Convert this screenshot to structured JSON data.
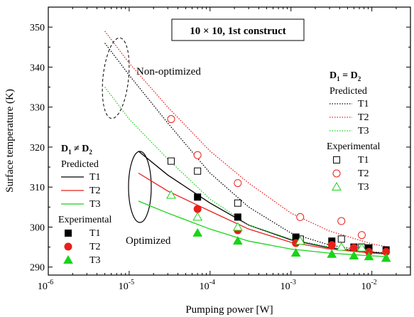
{
  "chart_data": {
    "type": "scatter",
    "title": "10 × 10, 1st construct",
    "xlabel": "Pumping power [W]",
    "ylabel": "Surface temperature (K)",
    "xscale": "log",
    "xlim": [
      1e-06,
      0.03
    ],
    "ylim": [
      288,
      355
    ],
    "x_tick_labels": [
      {
        "base": "10",
        "exp": "-6",
        "value": 1e-06
      },
      {
        "base": "10",
        "exp": "-5",
        "value": 1e-05
      },
      {
        "base": "10",
        "exp": "-4",
        "value": 0.0001
      },
      {
        "base": "10",
        "exp": "-3",
        "value": 0.001
      },
      {
        "base": "10",
        "exp": "-2",
        "value": 0.01
      }
    ],
    "y_ticks": [
      290,
      300,
      310,
      320,
      330,
      340,
      350
    ],
    "annotations": {
      "non_optimized": "Non-optimized",
      "optimized": "Optimized"
    },
    "legend_left": {
      "header": "D",
      "header_sub": "1",
      "header_rel": " ≠ D",
      "header_sub2": "2",
      "predicted_label": "Predicted",
      "experimental_label": "Experimental",
      "items": [
        "T1",
        "T2",
        "T3"
      ]
    },
    "legend_right": {
      "header": "D",
      "header_sub": "1",
      "header_rel": " = D",
      "header_sub2": "2",
      "predicted_label": "Predicted",
      "experimental_label": "Experimental",
      "items": [
        "T1",
        "T2",
        "T3"
      ]
    },
    "colors": {
      "T1": "#000000",
      "T2": "#e8201a",
      "T3": "#18d418"
    },
    "optimized": {
      "predicted": {
        "T1": [
          [
            1.3e-05,
            319
          ],
          [
            3e-05,
            313
          ],
          [
            0.0001,
            306
          ],
          [
            0.0003,
            300.5
          ],
          [
            0.001,
            296.8
          ],
          [
            0.003,
            294.8
          ],
          [
            0.01,
            293.7
          ],
          [
            0.016,
            293.3
          ]
        ],
        "T2": [
          [
            1.3e-05,
            313.5
          ],
          [
            3e-05,
            309
          ],
          [
            0.0001,
            304
          ],
          [
            0.0003,
            299.5
          ],
          [
            0.001,
            296.2
          ],
          [
            0.003,
            294.5
          ],
          [
            0.01,
            293.5
          ],
          [
            0.016,
            293.2
          ]
        ],
        "T3": [
          [
            1.3e-05,
            306.5
          ],
          [
            3e-05,
            303.5
          ],
          [
            0.0001,
            299.5
          ],
          [
            0.0003,
            296.5
          ],
          [
            0.001,
            294.5
          ],
          [
            0.003,
            293.5
          ],
          [
            0.01,
            292.8
          ],
          [
            0.016,
            292.6
          ]
        ]
      },
      "experimental": {
        "T1": [
          [
            7e-05,
            307.5
          ],
          [
            0.00022,
            302.5
          ],
          [
            0.00115,
            297.5
          ],
          [
            0.0032,
            296.5
          ],
          [
            0.006,
            295
          ],
          [
            0.0092,
            294.8
          ],
          [
            0.015,
            294.3
          ]
        ],
        "T2": [
          [
            7e-05,
            304.5
          ],
          [
            0.00022,
            299.2
          ],
          [
            0.00115,
            296
          ],
          [
            0.0032,
            295.5
          ],
          [
            0.006,
            294.8
          ],
          [
            0.0092,
            293.8
          ],
          [
            0.015,
            293.8
          ]
        ],
        "T3": [
          [
            7e-05,
            298.5
          ],
          [
            0.00022,
            296.5
          ],
          [
            0.00115,
            293.5
          ],
          [
            0.0032,
            293.2
          ],
          [
            0.006,
            292.8
          ],
          [
            0.0092,
            292.6
          ],
          [
            0.015,
            292.2
          ]
        ]
      }
    },
    "non_optimized": {
      "predicted": {
        "T1": [
          [
            5e-06,
            346
          ],
          [
            1e-05,
            338
          ],
          [
            3e-05,
            326
          ],
          [
            0.0001,
            313.5
          ],
          [
            0.0003,
            305
          ],
          [
            0.001,
            298.5
          ],
          [
            0.003,
            295.5
          ],
          [
            0.01,
            293.8
          ],
          [
            0.016,
            293.5
          ]
        ],
        "T2": [
          [
            5e-06,
            349
          ],
          [
            1e-05,
            341
          ],
          [
            3e-05,
            330
          ],
          [
            0.0001,
            319
          ],
          [
            0.0003,
            311
          ],
          [
            0.001,
            303.5
          ],
          [
            0.003,
            299
          ],
          [
            0.01,
            295.8
          ],
          [
            0.016,
            295
          ]
        ],
        "T3": [
          [
            5e-06,
            335
          ],
          [
            1e-05,
            327
          ],
          [
            3e-05,
            317
          ],
          [
            0.0001,
            307
          ],
          [
            0.0003,
            300.5
          ],
          [
            0.001,
            297
          ],
          [
            0.003,
            295
          ],
          [
            0.01,
            293.5
          ],
          [
            0.016,
            293.2
          ]
        ]
      },
      "experimental": {
        "T1": [
          [
            3.3e-05,
            316.5
          ],
          [
            7e-05,
            314
          ],
          [
            0.00022,
            306
          ],
          [
            0.0013,
            297
          ],
          [
            0.0042,
            297
          ],
          [
            0.0075,
            295
          ]
        ],
        "T2": [
          [
            3.3e-05,
            327
          ],
          [
            7e-05,
            318
          ],
          [
            0.00022,
            311
          ],
          [
            0.0013,
            302.5
          ],
          [
            0.0042,
            301.5
          ],
          [
            0.0075,
            298
          ]
        ],
        "T3": [
          [
            3.3e-05,
            308
          ],
          [
            7e-05,
            302.5
          ],
          [
            0.00022,
            300
          ],
          [
            0.0013,
            296.5
          ],
          [
            0.0042,
            295
          ],
          [
            0.0075,
            294.8
          ]
        ]
      }
    }
  }
}
